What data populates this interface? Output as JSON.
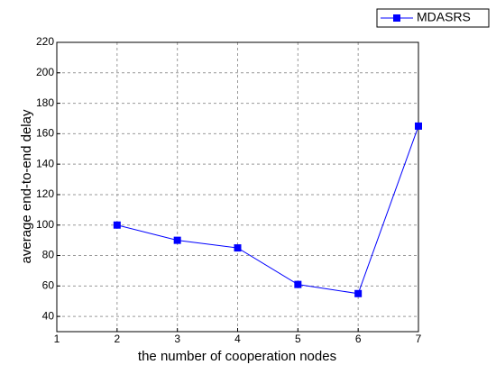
{
  "chart_data": {
    "type": "line",
    "x_label": "the number of cooperation nodes",
    "y_label": "average end-to-end delay",
    "x": [
      2,
      3,
      4,
      5,
      6,
      7
    ],
    "series": [
      {
        "name": "MDASRS",
        "color": "#0000ff",
        "values": [
          100,
          90,
          85,
          61,
          55,
          165
        ]
      }
    ],
    "xlim": [
      1,
      7
    ],
    "xticks": [
      1,
      2,
      3,
      4,
      5,
      6,
      7
    ],
    "ylim": [
      30,
      220
    ],
    "yticks": [
      40,
      60,
      80,
      100,
      120,
      140,
      160,
      180,
      200,
      220
    ],
    "grid": true,
    "legend": "top-right"
  }
}
